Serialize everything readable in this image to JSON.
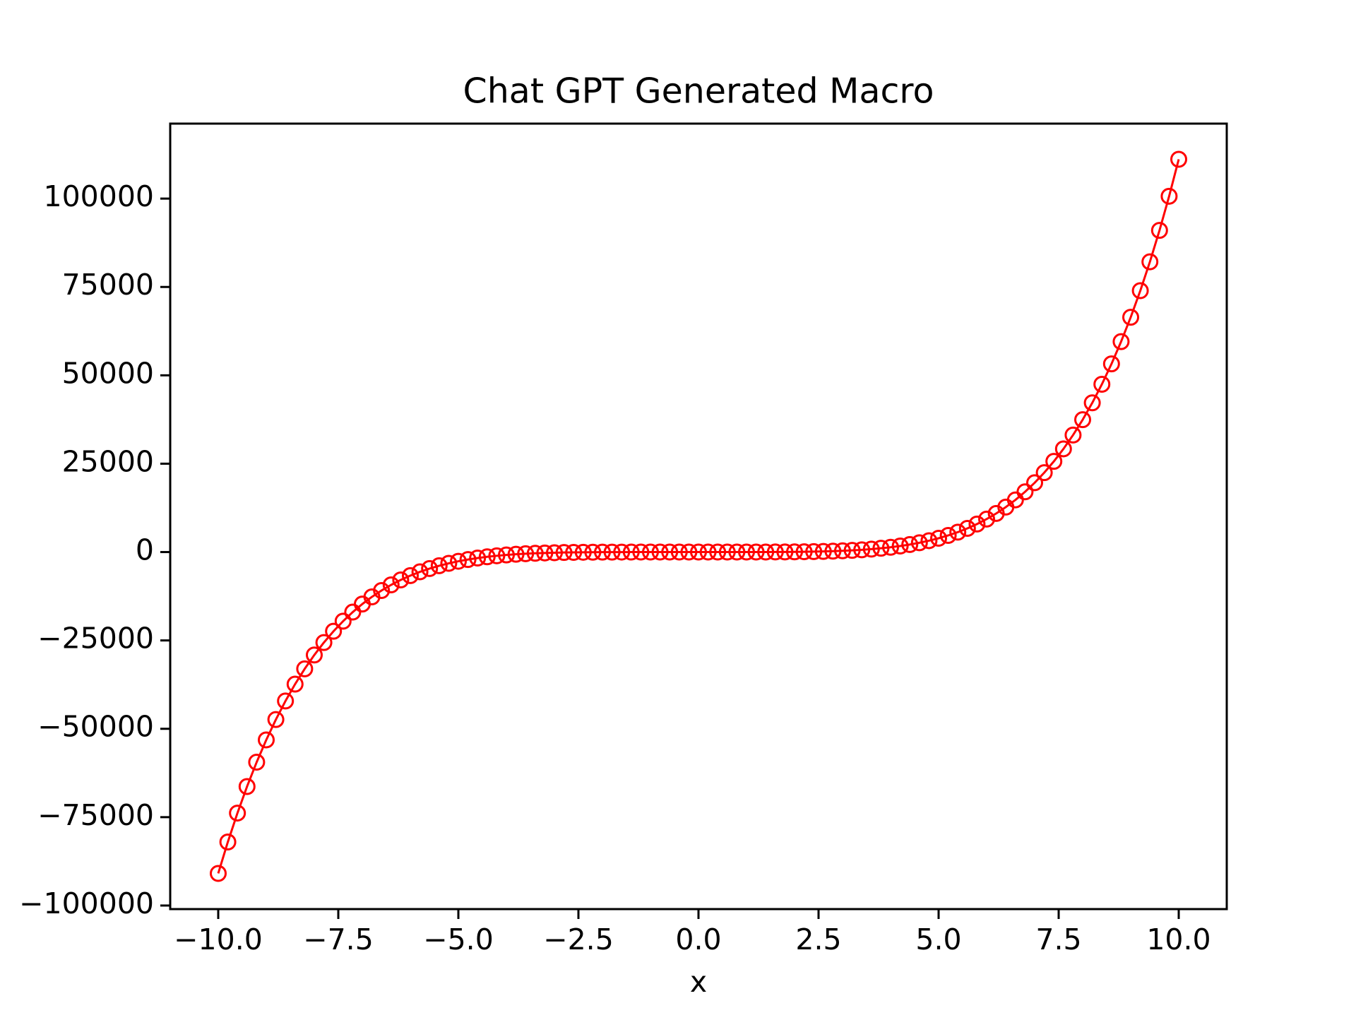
{
  "chart_data": {
    "type": "line",
    "title": "Chat GPT Generated Macro",
    "x_label": "x",
    "color": "red",
    "marker": "circle",
    "x": [
      -10,
      -9.8,
      -9.6,
      -9.4,
      -9.2,
      -9,
      -8.8,
      -8.6,
      -8.4,
      -8.2,
      -8,
      -7.8,
      -7.6,
      -7.4,
      -7.2,
      -7,
      -6.8,
      -6.6,
      -6.4,
      -6.2,
      -6,
      -5.8,
      -5.6,
      -5.4,
      -5.2,
      -5,
      -4.8,
      -4.6,
      -4.4,
      -4.2,
      -4,
      -3.8,
      -3.6,
      -3.4,
      -3.2,
      -3,
      -2.8,
      -2.6,
      -2.4,
      -2.2,
      -2,
      -1.8,
      -1.6,
      -1.4,
      -1.2,
      -1,
      -0.8,
      -0.6,
      -0.4,
      -0.2,
      0,
      0.2,
      0.4,
      0.6,
      0.8,
      1,
      1.2,
      1.4,
      1.6,
      1.8,
      2,
      2.2,
      2.4,
      2.6,
      2.8,
      3,
      3.2,
      3.4,
      3.6,
      3.8,
      4,
      4.2,
      4.4,
      4.6,
      4.8,
      5,
      5.2,
      5.4,
      5.6,
      5.8,
      6,
      6.2,
      6.4,
      6.6,
      6.8,
      7,
      7.2,
      7.4,
      7.6,
      7.8,
      8,
      8.2,
      8.4,
      8.6,
      8.8,
      9,
      9.2,
      9.4,
      9.6,
      9.8,
      10
    ],
    "values": [
      -90909,
      -82022,
      -73845,
      -66334,
      -59446,
      -53144,
      -47388,
      -42142,
      -37372,
      -33044,
      -29127,
      -25591,
      -22407,
      -19548,
      -16989,
      -14706,
      -12675,
      -10875,
      -9286,
      -7889,
      -6665,
      -5598,
      -4673,
      -3874,
      -3189,
      -2604,
      -2109,
      -1692,
      -1344,
      -1055,
      -819,
      -627,
      -473,
      -351,
      -255,
      -182,
      -127,
      -86,
      -56,
      -35,
      -21,
      -12,
      -6,
      -3,
      -1,
      0,
      0,
      1,
      1,
      1,
      1,
      1,
      2,
      2,
      4,
      6,
      10,
      16,
      26,
      41,
      63,
      94,
      136,
      192,
      267,
      364,
      488,
      643,
      837,
      1075,
      1365,
      1715,
      2134,
      2631,
      3218,
      3906,
      4707,
      5635,
      6704,
      7931,
      9331,
      10923,
      12726,
      14759,
      17046,
      19608,
      22470,
      25657,
      29197,
      33117,
      37449,
      42223,
      47473,
      53232,
      59539,
      66430,
      73946,
      82127,
      91018,
      100664,
      111111
    ],
    "xlim": [
      -11,
      11
    ],
    "ylim": [
      -101010,
      121212
    ],
    "xticks": [
      {
        "value": -10,
        "label": "−10.0"
      },
      {
        "value": -7.5,
        "label": "−7.5"
      },
      {
        "value": -5,
        "label": "−5.0"
      },
      {
        "value": -2.5,
        "label": "−2.5"
      },
      {
        "value": 0,
        "label": "0.0"
      },
      2.5,
      {
        "value": 5,
        "label": "5.0"
      },
      7.5,
      {
        "value": 10,
        "label": "10.0"
      }
    ],
    "yticks": [
      {
        "value": -100000,
        "label": "−100000"
      },
      {
        "value": -75000,
        "label": "−75000"
      },
      {
        "value": -50000,
        "label": "−50000"
      },
      {
        "value": -25000,
        "label": "−25000"
      },
      0,
      25000,
      50000,
      75000,
      100000
    ]
  }
}
